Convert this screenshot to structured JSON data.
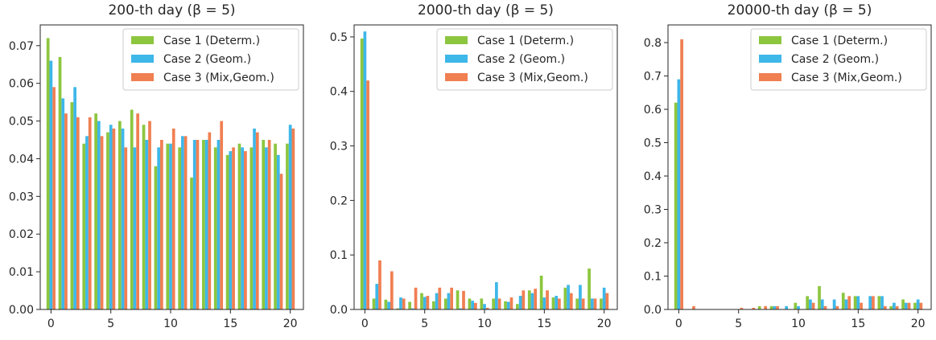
{
  "colors": {
    "case1": "#8cc63f",
    "case2": "#3eb7e9",
    "case3": "#f07f52"
  },
  "chart_data": [
    {
      "type": "bar",
      "title": "200-th day (β = 5)",
      "x": [
        0,
        1,
        2,
        3,
        4,
        5,
        6,
        7,
        8,
        9,
        10,
        11,
        12,
        13,
        14,
        15,
        16,
        17,
        18,
        19,
        20
      ],
      "xticks": [
        0,
        5,
        10,
        15,
        20
      ],
      "yticks": [
        0.0,
        0.01,
        0.02,
        0.03,
        0.04,
        0.05,
        0.06,
        0.07
      ],
      "ytick_labels": [
        "0.00",
        "0.01",
        "0.02",
        "0.03",
        "0.04",
        "0.05",
        "0.06",
        "0.07"
      ],
      "xlim": [
        -0.9,
        21.1
      ],
      "ylim": [
        0,
        0.0755
      ],
      "legend_position": "top-right",
      "series": [
        {
          "name": "Case 1 (Determ.)",
          "color_key": "case1",
          "values": [
            0.072,
            0.067,
            0.055,
            0.044,
            0.052,
            0.047,
            0.05,
            0.053,
            0.049,
            0.038,
            0.044,
            0.043,
            0.035,
            0.045,
            0.043,
            0.041,
            0.044,
            0.043,
            0.045,
            0.044,
            0.044
          ]
        },
        {
          "name": "Case 2 (Geom.)",
          "color_key": "case2",
          "values": [
            0.066,
            0.056,
            0.059,
            0.046,
            0.05,
            0.049,
            0.048,
            0.043,
            0.045,
            0.043,
            0.044,
            0.046,
            0.045,
            0.045,
            0.045,
            0.042,
            0.043,
            0.048,
            0.043,
            0.041,
            0.049
          ]
        },
        {
          "name": "Case 3 (Mix,Geom.)",
          "color_key": "case3",
          "values": [
            0.059,
            0.052,
            0.051,
            0.051,
            0.046,
            0.048,
            0.043,
            0.052,
            0.05,
            0.045,
            0.048,
            0.046,
            0.045,
            0.047,
            0.05,
            0.043,
            0.042,
            0.047,
            0.045,
            0.036,
            0.048
          ]
        }
      ]
    },
    {
      "type": "bar",
      "title": "2000-th day (β = 5)",
      "x": [
        0,
        1,
        2,
        3,
        4,
        5,
        6,
        7,
        8,
        9,
        10,
        11,
        12,
        13,
        14,
        15,
        16,
        17,
        18,
        19,
        20
      ],
      "xticks": [
        0,
        5,
        10,
        15,
        20
      ],
      "yticks": [
        0.0,
        0.1,
        0.2,
        0.3,
        0.4,
        0.5
      ],
      "ytick_labels": [
        "0.0",
        "0.1",
        "0.2",
        "0.3",
        "0.4",
        "0.5"
      ],
      "xlim": [
        -0.9,
        21.1
      ],
      "ylim": [
        0,
        0.522
      ],
      "legend_position": "top-right",
      "series": [
        {
          "name": "Case 1 (Determ.)",
          "color_key": "case1",
          "values": [
            0.497,
            0.02,
            0.018,
            0.002,
            0.014,
            0.03,
            0.015,
            0.02,
            0.035,
            0.02,
            0.02,
            0.02,
            0.015,
            0.01,
            0.035,
            0.062,
            0.022,
            0.04,
            0.02,
            0.075,
            0.02
          ]
        },
        {
          "name": "Case 2 (Geom.)",
          "color_key": "case2",
          "values": [
            0.51,
            0.047,
            0.014,
            0.022,
            0.002,
            0.023,
            0.03,
            0.03,
            0.002,
            0.016,
            0.01,
            0.05,
            0.014,
            0.025,
            0.03,
            0.022,
            0.025,
            0.045,
            0.045,
            0.02,
            0.04
          ]
        },
        {
          "name": "Case 3 (Mix,Geom.)",
          "color_key": "case3",
          "values": [
            0.42,
            0.09,
            0.07,
            0.02,
            0.04,
            0.025,
            0.04,
            0.04,
            0.034,
            0.012,
            0.003,
            0.02,
            0.022,
            0.035,
            0.038,
            0.035,
            0.02,
            0.03,
            0.02,
            0.02,
            0.03
          ]
        }
      ]
    },
    {
      "type": "bar",
      "title": "20000-th day (β = 5)",
      "x": [
        0,
        1,
        2,
        3,
        4,
        5,
        6,
        7,
        8,
        9,
        10,
        11,
        12,
        13,
        14,
        15,
        16,
        17,
        18,
        19,
        20
      ],
      "xticks": [
        0,
        5,
        10,
        15,
        20
      ],
      "yticks": [
        0.0,
        0.1,
        0.2,
        0.3,
        0.4,
        0.5,
        0.6,
        0.7,
        0.8
      ],
      "ytick_labels": [
        "0.0",
        "0.1",
        "0.2",
        "0.3",
        "0.4",
        "0.5",
        "0.6",
        "0.7",
        "0.8"
      ],
      "xlim": [
        -0.9,
        21.1
      ],
      "ylim": [
        0,
        0.853
      ],
      "legend_position": "top-right",
      "series": [
        {
          "name": "Case 1 (Determ.)",
          "color_key": "case1",
          "values": [
            0.62,
            0.0,
            0.0,
            0.0,
            0.0,
            0.0,
            0.0,
            0.01,
            0.01,
            0.0,
            0.02,
            0.04,
            0.07,
            0.0,
            0.05,
            0.04,
            0.0,
            0.04,
            0.01,
            0.03,
            0.02
          ]
        },
        {
          "name": "Case 2 (Geom.)",
          "color_key": "case2",
          "values": [
            0.69,
            0.0,
            0.0,
            0.0,
            0.0,
            0.0,
            0.0,
            0.0,
            0.01,
            0.01,
            0.01,
            0.03,
            0.03,
            0.03,
            0.03,
            0.04,
            0.04,
            0.04,
            0.02,
            0.02,
            0.03
          ]
        },
        {
          "name": "Case 3 (Mix,Geom.)",
          "color_key": "case3",
          "values": [
            0.81,
            0.01,
            0.0,
            0.0,
            0.0,
            0.005,
            0.005,
            0.01,
            0.01,
            0.0,
            0.0,
            0.02,
            0.01,
            0.01,
            0.04,
            0.02,
            0.04,
            0.01,
            0.01,
            0.02,
            0.02
          ]
        }
      ]
    }
  ]
}
